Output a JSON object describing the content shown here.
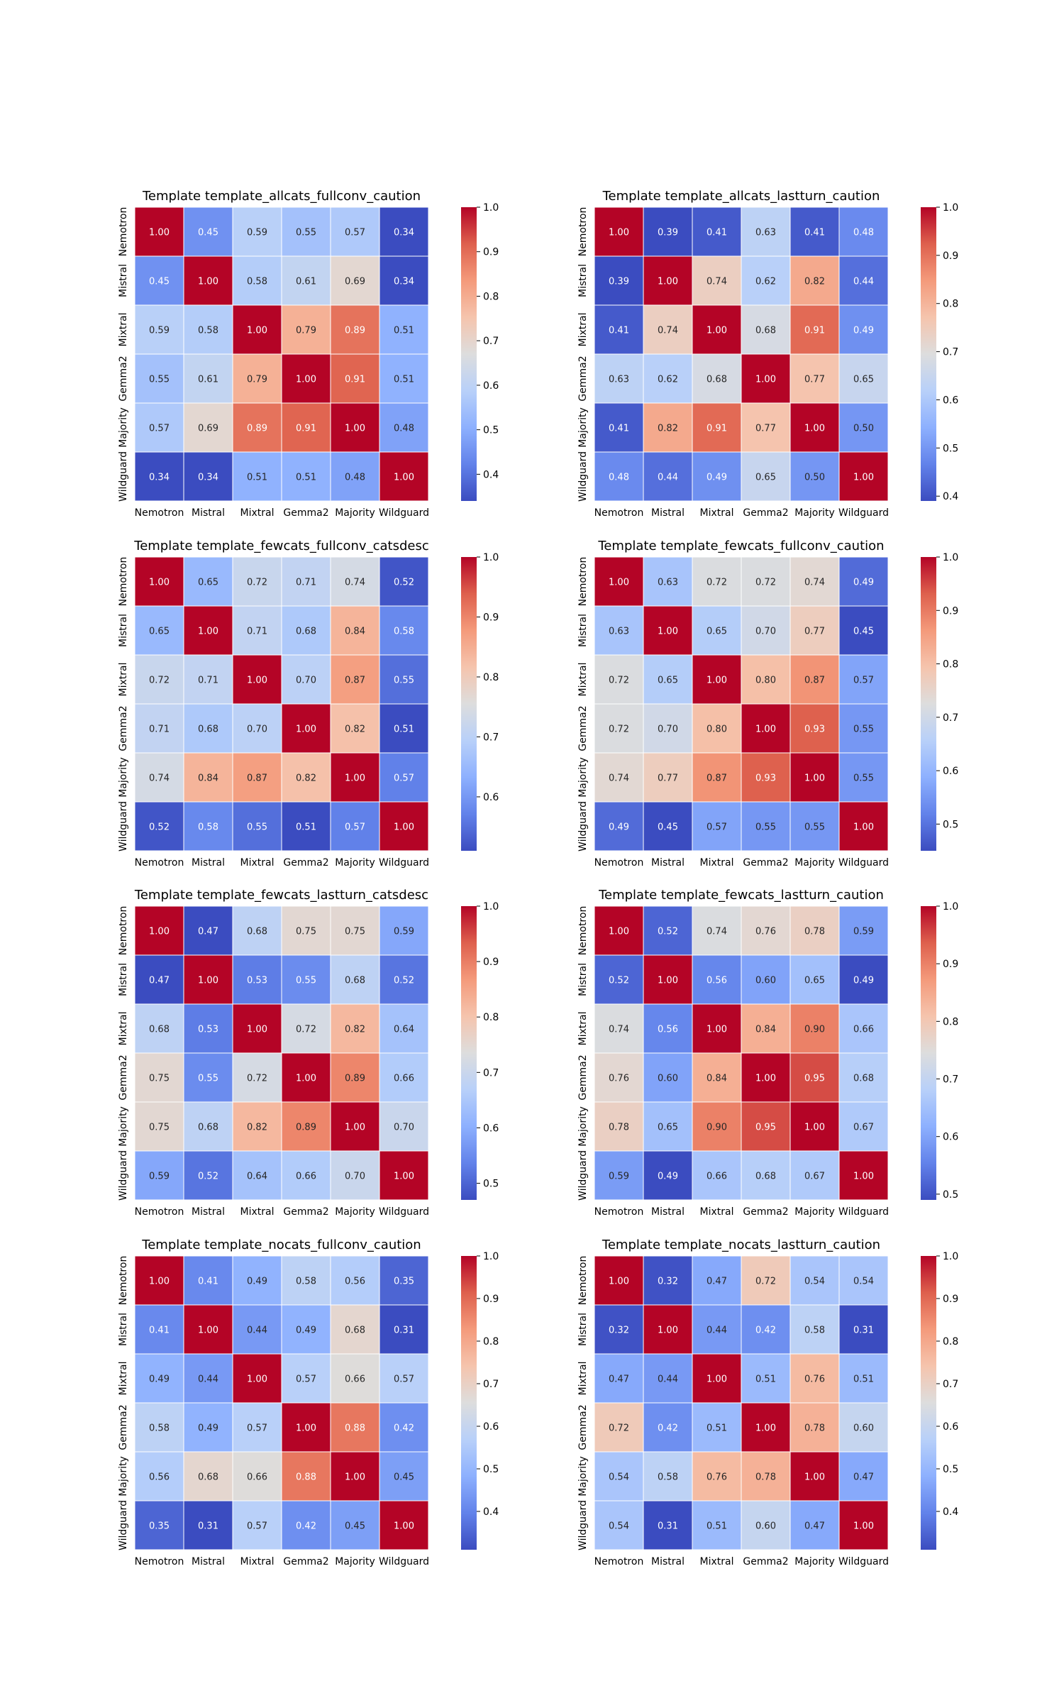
{
  "figure": {
    "layout": "4 rows x 2 columns of correlation heatmaps",
    "colormap": "coolwarm"
  },
  "colors": {
    "cold": "#3b4cc0",
    "neutral": "#dddddd",
    "hot": "#b40426"
  },
  "chart_data": [
    {
      "type": "heatmap",
      "title": "Template template_allcats_fullconv_caution",
      "labels": [
        "Nemotron",
        "Mistral",
        "Mixtral",
        "Gemma2",
        "Majority",
        "Wildguard"
      ],
      "matrix": [
        [
          1.0,
          0.45,
          0.59,
          0.55,
          0.57,
          0.34
        ],
        [
          0.45,
          1.0,
          0.58,
          0.61,
          0.69,
          0.34
        ],
        [
          0.59,
          0.58,
          1.0,
          0.79,
          0.89,
          0.51
        ],
        [
          0.55,
          0.61,
          0.79,
          1.0,
          0.91,
          0.51
        ],
        [
          0.57,
          0.69,
          0.89,
          0.91,
          1.0,
          0.48
        ],
        [
          0.34,
          0.34,
          0.51,
          0.51,
          0.48,
          1.0
        ]
      ],
      "vmin": 0.34,
      "vmax": 1.0,
      "colorbar_ticks": [
        "0.4",
        "0.5",
        "0.6",
        "0.7",
        "0.8",
        "0.9",
        "1.0"
      ]
    },
    {
      "type": "heatmap",
      "title": "Template template_allcats_lastturn_caution",
      "labels": [
        "Nemotron",
        "Mistral",
        "Mixtral",
        "Gemma2",
        "Majority",
        "Wildguard"
      ],
      "matrix": [
        [
          1.0,
          0.39,
          0.41,
          0.63,
          0.41,
          0.48
        ],
        [
          0.39,
          1.0,
          0.74,
          0.62,
          0.82,
          0.44
        ],
        [
          0.41,
          0.74,
          1.0,
          0.68,
          0.91,
          0.49
        ],
        [
          0.63,
          0.62,
          0.68,
          1.0,
          0.77,
          0.65
        ],
        [
          0.41,
          0.82,
          0.91,
          0.77,
          1.0,
          0.5
        ],
        [
          0.48,
          0.44,
          0.49,
          0.65,
          0.5,
          1.0
        ]
      ],
      "vmin": 0.39,
      "vmax": 1.0,
      "colorbar_ticks": [
        "0.4",
        "0.5",
        "0.6",
        "0.7",
        "0.8",
        "0.9",
        "1.0"
      ]
    },
    {
      "type": "heatmap",
      "title": "Template template_fewcats_fullconv_catsdesc",
      "labels": [
        "Nemotron",
        "Mistral",
        "Mixtral",
        "Gemma2",
        "Majority",
        "Wildguard"
      ],
      "matrix": [
        [
          1.0,
          0.65,
          0.72,
          0.71,
          0.74,
          0.52
        ],
        [
          0.65,
          1.0,
          0.71,
          0.68,
          0.84,
          0.58
        ],
        [
          0.72,
          0.71,
          1.0,
          0.7,
          0.87,
          0.55
        ],
        [
          0.71,
          0.68,
          0.7,
          1.0,
          0.82,
          0.51
        ],
        [
          0.74,
          0.84,
          0.87,
          0.82,
          1.0,
          0.57
        ],
        [
          0.52,
          0.58,
          0.55,
          0.51,
          0.57,
          1.0
        ]
      ],
      "vmin": 0.51,
      "vmax": 1.0,
      "colorbar_ticks": [
        "0.6",
        "0.7",
        "0.8",
        "0.9",
        "1.0"
      ]
    },
    {
      "type": "heatmap",
      "title": "Template template_fewcats_fullconv_caution",
      "labels": [
        "Nemotron",
        "Mistral",
        "Mixtral",
        "Gemma2",
        "Majority",
        "Wildguard"
      ],
      "matrix": [
        [
          1.0,
          0.63,
          0.72,
          0.72,
          0.74,
          0.49
        ],
        [
          0.63,
          1.0,
          0.65,
          0.7,
          0.77,
          0.45
        ],
        [
          0.72,
          0.65,
          1.0,
          0.8,
          0.87,
          0.57
        ],
        [
          0.72,
          0.7,
          0.8,
          1.0,
          0.93,
          0.55
        ],
        [
          0.74,
          0.77,
          0.87,
          0.93,
          1.0,
          0.55
        ],
        [
          0.49,
          0.45,
          0.57,
          0.55,
          0.55,
          1.0
        ]
      ],
      "vmin": 0.45,
      "vmax": 1.0,
      "colorbar_ticks": [
        "0.5",
        "0.6",
        "0.7",
        "0.8",
        "0.9",
        "1.0"
      ]
    },
    {
      "type": "heatmap",
      "title": "Template template_fewcats_lastturn_catsdesc",
      "labels": [
        "Nemotron",
        "Mistral",
        "Mixtral",
        "Gemma2",
        "Majority",
        "Wildguard"
      ],
      "matrix": [
        [
          1.0,
          0.47,
          0.68,
          0.75,
          0.75,
          0.59
        ],
        [
          0.47,
          1.0,
          0.53,
          0.55,
          0.68,
          0.52
        ],
        [
          0.68,
          0.53,
          1.0,
          0.72,
          0.82,
          0.64
        ],
        [
          0.75,
          0.55,
          0.72,
          1.0,
          0.89,
          0.66
        ],
        [
          0.75,
          0.68,
          0.82,
          0.89,
          1.0,
          0.7
        ],
        [
          0.59,
          0.52,
          0.64,
          0.66,
          0.7,
          1.0
        ]
      ],
      "vmin": 0.47,
      "vmax": 1.0,
      "colorbar_ticks": [
        "0.5",
        "0.6",
        "0.7",
        "0.8",
        "0.9",
        "1.0"
      ]
    },
    {
      "type": "heatmap",
      "title": "Template template_fewcats_lastturn_caution",
      "labels": [
        "Nemotron",
        "Mistral",
        "Mixtral",
        "Gemma2",
        "Majority",
        "Wildguard"
      ],
      "matrix": [
        [
          1.0,
          0.52,
          0.74,
          0.76,
          0.78,
          0.59
        ],
        [
          0.52,
          1.0,
          0.56,
          0.6,
          0.65,
          0.49
        ],
        [
          0.74,
          0.56,
          1.0,
          0.84,
          0.9,
          0.66
        ],
        [
          0.76,
          0.6,
          0.84,
          1.0,
          0.95,
          0.68
        ],
        [
          0.78,
          0.65,
          0.9,
          0.95,
          1.0,
          0.67
        ],
        [
          0.59,
          0.49,
          0.66,
          0.68,
          0.67,
          1.0
        ]
      ],
      "vmin": 0.49,
      "vmax": 1.0,
      "colorbar_ticks": [
        "0.5",
        "0.6",
        "0.7",
        "0.8",
        "0.9",
        "1.0"
      ]
    },
    {
      "type": "heatmap",
      "title": "Template template_nocats_fullconv_caution",
      "labels": [
        "Nemotron",
        "Mistral",
        "Mixtral",
        "Gemma2",
        "Majority",
        "Wildguard"
      ],
      "matrix": [
        [
          1.0,
          0.41,
          0.49,
          0.58,
          0.56,
          0.35
        ],
        [
          0.41,
          1.0,
          0.44,
          0.49,
          0.68,
          0.31
        ],
        [
          0.49,
          0.44,
          1.0,
          0.57,
          0.66,
          0.57
        ],
        [
          0.58,
          0.49,
          0.57,
          1.0,
          0.88,
          0.42
        ],
        [
          0.56,
          0.68,
          0.66,
          0.88,
          1.0,
          0.45
        ],
        [
          0.35,
          0.31,
          0.57,
          0.42,
          0.45,
          1.0
        ]
      ],
      "vmin": 0.31,
      "vmax": 1.0,
      "colorbar_ticks": [
        "0.4",
        "0.5",
        "0.6",
        "0.7",
        "0.8",
        "0.9",
        "1.0"
      ]
    },
    {
      "type": "heatmap",
      "title": "Template template_nocats_lastturn_caution",
      "labels": [
        "Nemotron",
        "Mistral",
        "Mixtral",
        "Gemma2",
        "Majority",
        "Wildguard"
      ],
      "matrix": [
        [
          1.0,
          0.32,
          0.47,
          0.72,
          0.54,
          0.54
        ],
        [
          0.32,
          1.0,
          0.44,
          0.42,
          0.58,
          0.31
        ],
        [
          0.47,
          0.44,
          1.0,
          0.51,
          0.76,
          0.51
        ],
        [
          0.72,
          0.42,
          0.51,
          1.0,
          0.78,
          0.6
        ],
        [
          0.54,
          0.58,
          0.76,
          0.78,
          1.0,
          0.47
        ],
        [
          0.54,
          0.31,
          0.51,
          0.6,
          0.47,
          1.0
        ]
      ],
      "vmin": 0.31,
      "vmax": 1.0,
      "colorbar_ticks": [
        "0.4",
        "0.5",
        "0.6",
        "0.7",
        "0.8",
        "0.9",
        "1.0"
      ]
    }
  ]
}
